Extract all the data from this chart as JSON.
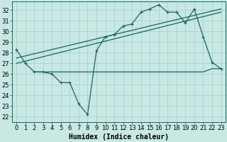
{
  "xlabel": "Humidex (Indice chaleur)",
  "bg_color": "#c8e8e4",
  "grid_color": "#a8ccc8",
  "line_color": "#1a6660",
  "xlim": [
    -0.5,
    23.5
  ],
  "ylim": [
    21.5,
    32.8
  ],
  "yticks": [
    22,
    23,
    24,
    25,
    26,
    27,
    28,
    29,
    30,
    31,
    32
  ],
  "xticks": [
    0,
    1,
    2,
    3,
    4,
    5,
    6,
    7,
    8,
    9,
    10,
    11,
    12,
    13,
    14,
    15,
    16,
    17,
    18,
    19,
    20,
    21,
    22,
    23
  ],
  "curve1_x": [
    0,
    1,
    2,
    3,
    4,
    5,
    6,
    7,
    8,
    9,
    10,
    11,
    12,
    13,
    14,
    15,
    16,
    17,
    18,
    19,
    20,
    21,
    22,
    23
  ],
  "curve1_y": [
    28.3,
    27.0,
    26.2,
    26.2,
    26.0,
    25.2,
    25.2,
    23.2,
    22.2,
    28.2,
    29.5,
    29.7,
    30.5,
    30.7,
    31.8,
    32.1,
    32.5,
    31.8,
    31.8,
    30.8,
    32.1,
    29.5,
    27.1,
    26.5
  ],
  "flat_x": [
    2,
    3,
    4,
    5,
    6,
    7,
    8,
    9,
    10,
    11,
    12,
    13,
    14,
    15,
    16,
    17,
    18,
    19,
    20,
    21,
    22,
    23
  ],
  "flat_y": [
    26.2,
    26.2,
    26.2,
    26.2,
    26.2,
    26.2,
    26.2,
    26.2,
    26.2,
    26.2,
    26.2,
    26.2,
    26.2,
    26.2,
    26.2,
    26.2,
    26.2,
    26.2,
    26.2,
    26.2,
    26.5,
    26.5
  ],
  "trend1_x": [
    0,
    23
  ],
  "trend1_y": [
    27.5,
    32.1
  ],
  "trend2_x": [
    0,
    23
  ],
  "trend2_y": [
    27.0,
    31.8
  ],
  "xlabel_fontsize": 7,
  "tick_fontsize": 6
}
